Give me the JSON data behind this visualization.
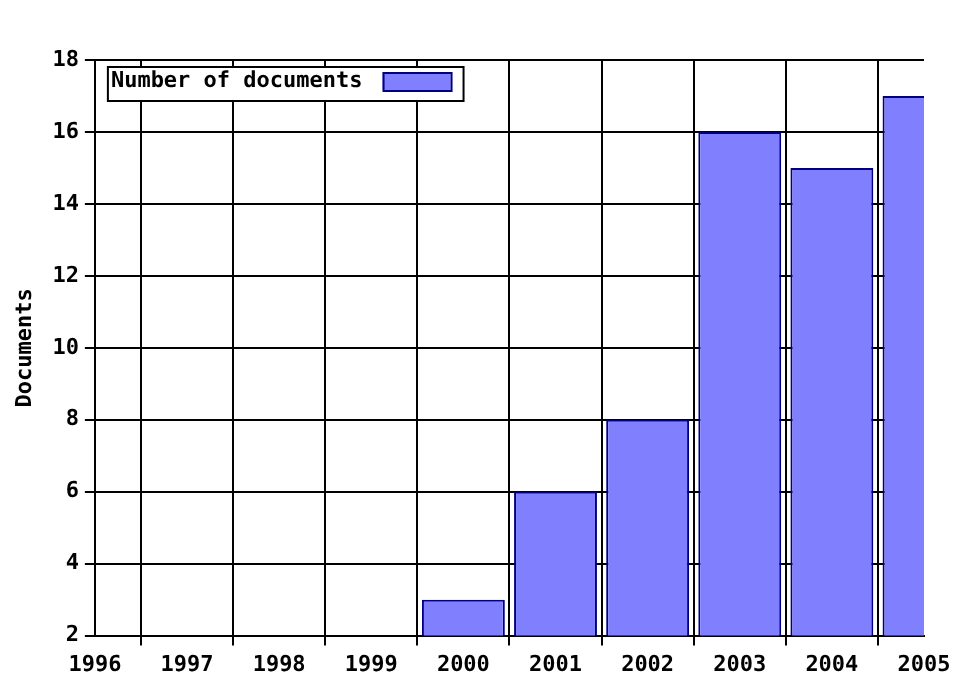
{
  "chart_data": {
    "type": "bar",
    "ylabel": "Documents",
    "x": [
      2000,
      2001,
      2002,
      2003,
      2004,
      2005
    ],
    "series": [
      {
        "name": "Number of documents",
        "color": "#8080ff",
        "values": [
          3,
          6,
          8,
          16,
          15,
          17
        ]
      }
    ],
    "xlim": [
      1996,
      2005
    ],
    "xticks": [
      1996,
      1997,
      1998,
      1999,
      2000,
      2001,
      2002,
      2003,
      2004,
      2005
    ],
    "ylim": [
      2,
      18
    ],
    "yticks": [
      2,
      4,
      6,
      8,
      10,
      12,
      14,
      16,
      18
    ],
    "grid": true,
    "legend": "top left"
  }
}
